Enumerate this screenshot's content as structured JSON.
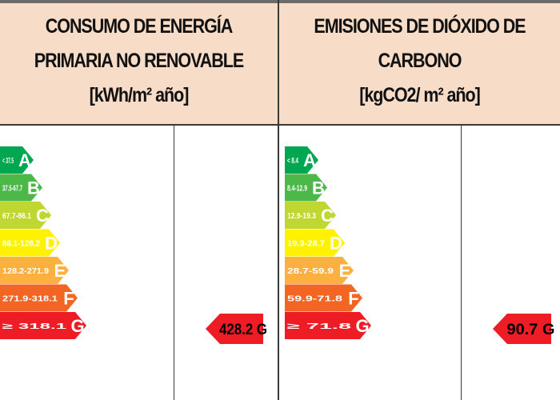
{
  "colors": {
    "header_bg": "#f7dcc7",
    "rating_marker": "#ee1c24",
    "band_colors": [
      "#00a650",
      "#4cb848",
      "#bfd730",
      "#fff200",
      "#fbb040",
      "#f26522",
      "#ee1c24"
    ]
  },
  "panels": [
    {
      "title_lines": [
        "CONSUMO DE ENERGÍA",
        "PRIMARIA NO RENOVABLE",
        "[kWh/m² año]"
      ],
      "bands": [
        {
          "range": "< 37.5",
          "letter": "A"
        },
        {
          "range": "37.5-67.7",
          "letter": "B"
        },
        {
          "range": "67.7-86.1",
          "letter": "C"
        },
        {
          "range": "86.1-128.2",
          "letter": "D"
        },
        {
          "range": "128.2-271.9",
          "letter": "E"
        },
        {
          "range": "271.9-318.1",
          "letter": "F"
        },
        {
          "range": "≥ 318.1",
          "letter": "G"
        }
      ],
      "rating": {
        "value": "428.2",
        "letter": "G",
        "band_index": 6
      }
    },
    {
      "title_lines": [
        "EMISIONES DE DIÓXIDO DE",
        "CARBONO",
        "[kgCO2/ m² año]"
      ],
      "bands": [
        {
          "range": "< 8.4",
          "letter": "A"
        },
        {
          "range": "8.4-12.9",
          "letter": "B"
        },
        {
          "range": "12.9-19.3",
          "letter": "C"
        },
        {
          "range": "19.3-28.7",
          "letter": "D"
        },
        {
          "range": "28.7-59.9",
          "letter": "E"
        },
        {
          "range": "59.9-71.8",
          "letter": "F"
        },
        {
          "range": "≥ 71.8",
          "letter": "G"
        }
      ],
      "rating": {
        "value": "90.7",
        "letter": "G",
        "band_index": 6
      }
    }
  ]
}
